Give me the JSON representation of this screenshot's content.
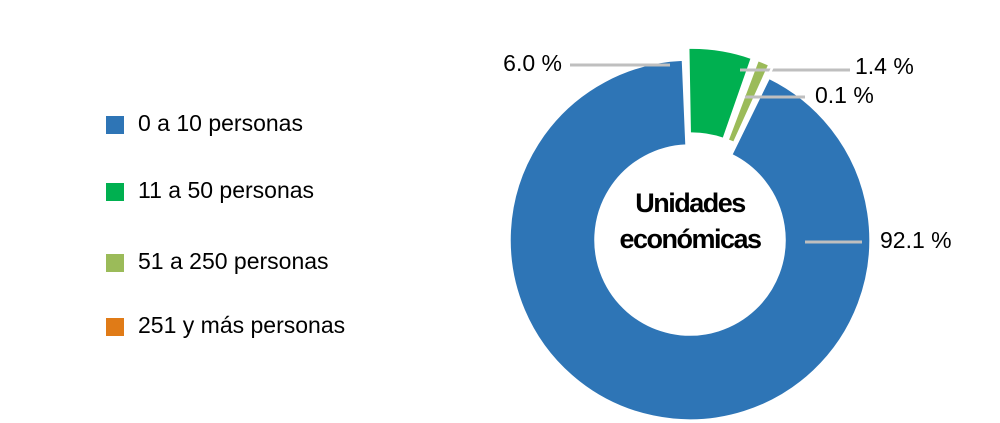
{
  "chart_data": {
    "type": "donut",
    "center_text": "Unidades económicas",
    "categories": [
      "0 a 10 personas",
      "11 a 50 personas",
      "51 a 250 personas",
      "251 y más personas"
    ],
    "values": [
      92.1,
      6.0,
      1.4,
      0.1
    ],
    "value_labels": [
      "92.1 %",
      "6.0 %",
      "1.4 %",
      "0.1 %"
    ],
    "colors": [
      "#2e75b6",
      "#00b050",
      "#9bbb59",
      "#e07b17"
    ],
    "legend": "left"
  }
}
